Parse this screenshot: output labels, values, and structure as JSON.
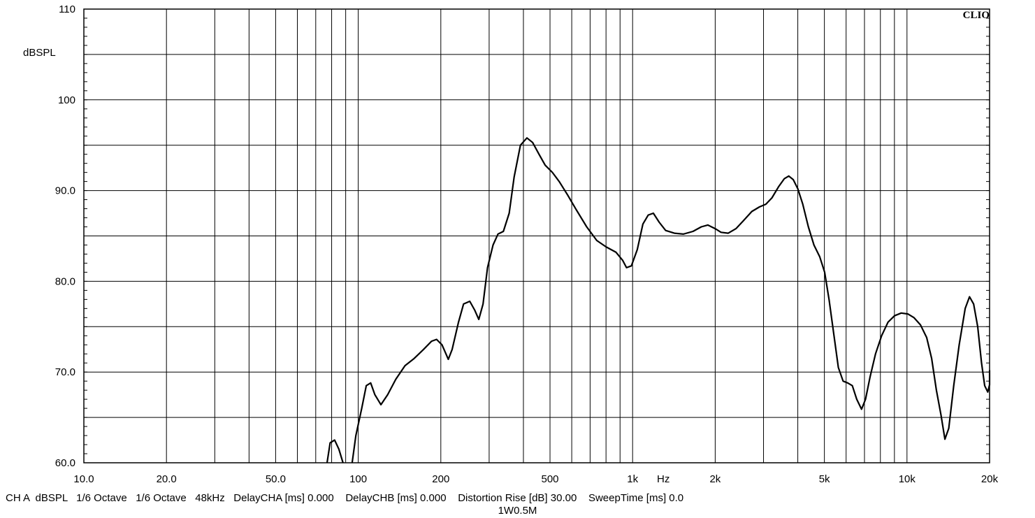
{
  "brand": "CLIO",
  "footer": "CH A  dBSPL   1/6 Octave   1/6 Octave   48kHz   DelayCHA [ms] 0.000    DelayCHB [ms] 0.000    Distortion Rise [dB] 30.00    SweepTime [ms] 0.0",
  "caption": "1W0.5M",
  "chart_data": {
    "type": "line",
    "ylabel": "dBSPL",
    "xlabel": "Hz",
    "ylim": [
      60,
      110
    ],
    "xlim": [
      10,
      20000
    ],
    "xscale": "log",
    "grid": true,
    "y_ticks": [
      {
        "value": 110,
        "label": "110"
      },
      {
        "value": 100,
        "label": "100"
      },
      {
        "value": 90,
        "label": "90.0"
      },
      {
        "value": 80,
        "label": "80.0"
      },
      {
        "value": 70,
        "label": "70.0"
      },
      {
        "value": 60,
        "label": "60.0"
      }
    ],
    "x_ticks": [
      {
        "value": 10,
        "label": "10.0"
      },
      {
        "value": 20,
        "label": "20.0"
      },
      {
        "value": 50,
        "label": "50.0"
      },
      {
        "value": 100,
        "label": "100"
      },
      {
        "value": 200,
        "label": "200"
      },
      {
        "value": 500,
        "label": "500"
      },
      {
        "value": 1000,
        "label": "1k"
      },
      {
        "value": 2000,
        "label": "2k"
      },
      {
        "value": 5000,
        "label": "5k"
      },
      {
        "value": 10000,
        "label": "10k"
      },
      {
        "value": 20000,
        "label": "20k"
      }
    ],
    "series": [
      {
        "segments": [
          [
            [
              77,
              60
            ],
            [
              79,
              62.2
            ],
            [
              82,
              62.5
            ],
            [
              85,
              61.5
            ],
            [
              88,
              60
            ]
          ],
          [
            [
              95,
              60
            ],
            [
              98,
              63
            ],
            [
              103,
              66
            ],
            [
              107,
              68.5
            ],
            [
              111,
              68.8
            ],
            [
              115,
              67.5
            ],
            [
              121,
              66.4
            ],
            [
              128,
              67.5
            ],
            [
              137,
              69.2
            ],
            [
              148,
              70.7
            ],
            [
              160,
              71.5
            ],
            [
              173,
              72.5
            ],
            [
              185,
              73.4
            ],
            [
              193,
              73.6
            ],
            [
              202,
              73.0
            ],
            [
              213,
              71.4
            ],
            [
              220,
              72.5
            ],
            [
              232,
              75.5
            ],
            [
              242,
              77.5
            ],
            [
              255,
              77.8
            ],
            [
              266,
              76.8
            ],
            [
              275,
              75.8
            ],
            [
              285,
              77.5
            ],
            [
              296,
              81.5
            ],
            [
              310,
              84
            ],
            [
              323,
              85.2
            ],
            [
              338,
              85.5
            ],
            [
              355,
              87.5
            ],
            [
              370,
              91.5
            ],
            [
              390,
              95
            ],
            [
              412,
              95.8
            ],
            [
              432,
              95.3
            ],
            [
              456,
              94
            ],
            [
              480,
              92.8
            ],
            [
              510,
              92
            ],
            [
              540,
              91
            ],
            [
              580,
              89.5
            ],
            [
              620,
              88
            ],
            [
              680,
              86
            ],
            [
              740,
              84.5
            ],
            [
              800,
              83.8
            ],
            [
              870,
              83.2
            ],
            [
              920,
              82.3
            ],
            [
              950,
              81.5
            ],
            [
              990,
              81.7
            ],
            [
              1040,
              83.5
            ],
            [
              1090,
              86.3
            ],
            [
              1140,
              87.3
            ],
            [
              1190,
              87.5
            ],
            [
              1250,
              86.5
            ],
            [
              1320,
              85.6
            ],
            [
              1420,
              85.3
            ],
            [
              1530,
              85.2
            ],
            [
              1660,
              85.5
            ],
            [
              1780,
              86
            ],
            [
              1880,
              86.2
            ],
            [
              2000,
              85.8
            ],
            [
              2100,
              85.4
            ],
            [
              2230,
              85.3
            ],
            [
              2380,
              85.8
            ],
            [
              2540,
              86.7
            ],
            [
              2720,
              87.7
            ],
            [
              2900,
              88.2
            ],
            [
              3060,
              88.5
            ],
            [
              3220,
              89.2
            ],
            [
              3400,
              90.4
            ],
            [
              3570,
              91.3
            ],
            [
              3710,
              91.6
            ],
            [
              3850,
              91.2
            ],
            [
              4000,
              90.2
            ],
            [
              4170,
              88.5
            ],
            [
              4370,
              86
            ],
            [
              4580,
              84
            ],
            [
              4810,
              82.7
            ],
            [
              5010,
              81
            ],
            [
              5200,
              78
            ],
            [
              5420,
              74
            ],
            [
              5620,
              70.5
            ],
            [
              5850,
              69
            ],
            [
              6080,
              68.8
            ],
            [
              6320,
              68.5
            ],
            [
              6560,
              67
            ],
            [
              6830,
              65.9
            ],
            [
              7060,
              67
            ],
            [
              7340,
              69.5
            ],
            [
              7680,
              72
            ],
            [
              8080,
              74
            ],
            [
              8530,
              75.5
            ],
            [
              9010,
              76.2
            ],
            [
              9530,
              76.5
            ],
            [
              10070,
              76.4
            ],
            [
              10600,
              76
            ],
            [
              11200,
              75.2
            ],
            [
              11800,
              73.8
            ],
            [
              12300,
              71.5
            ],
            [
              12800,
              68
            ],
            [
              13300,
              65.3
            ],
            [
              13750,
              62.6
            ],
            [
              14200,
              63.8
            ],
            [
              14800,
              68.5
            ],
            [
              15500,
              73
            ],
            [
              16300,
              77
            ],
            [
              16900,
              78.3
            ],
            [
              17500,
              77.5
            ],
            [
              18100,
              75
            ],
            [
              18700,
              71
            ],
            [
              19200,
              68.5
            ],
            [
              19700,
              67.8
            ],
            [
              20200,
              68.6
            ],
            [
              20800,
              69.5
            ],
            [
              21300,
              70.2
            ]
          ]
        ]
      }
    ]
  }
}
